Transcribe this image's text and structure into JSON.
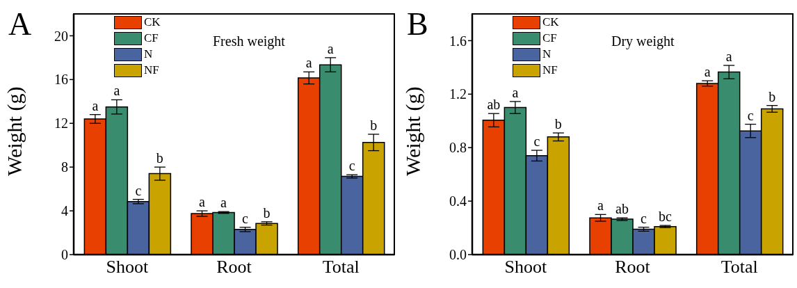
{
  "chart_data": [
    {
      "type": "bar",
      "title": "A",
      "annotations": [
        "Fresh weight"
      ],
      "ylabel": "Weight (g)",
      "categories": [
        "Shoot",
        "Root",
        "Total"
      ],
      "ylim": [
        0,
        22
      ],
      "yticks": [
        0,
        4,
        8,
        12,
        16,
        20
      ],
      "legend": "top left",
      "series": [
        {
          "name": "CK",
          "color": "#e84000",
          "values": [
            12.4,
            3.75,
            16.15
          ],
          "errors": [
            0.4,
            0.25,
            0.55
          ],
          "value_labels": [
            "a",
            "a",
            "a"
          ]
        },
        {
          "name": "CF",
          "color": "#3a8c6e",
          "values": [
            13.5,
            3.85,
            17.35
          ],
          "errors": [
            0.65,
            0.08,
            0.65
          ],
          "value_labels": [
            "a",
            "a",
            "a"
          ]
        },
        {
          "name": "N",
          "color": "#4a64a0",
          "values": [
            4.85,
            2.3,
            7.15
          ],
          "errors": [
            0.2,
            0.2,
            0.15
          ],
          "value_labels": [
            "c",
            "c",
            "c"
          ]
        },
        {
          "name": "NF",
          "color": "#c9a400",
          "values": [
            7.4,
            2.85,
            10.25
          ],
          "errors": [
            0.6,
            0.15,
            0.75
          ],
          "value_labels": [
            "b",
            "b",
            "b"
          ]
        }
      ]
    },
    {
      "type": "bar",
      "title": "B",
      "annotations": [
        "Dry weight"
      ],
      "ylabel": "Weight (g)",
      "categories": [
        "Shoot",
        "Root",
        "Total"
      ],
      "ylim": [
        0,
        1.8
      ],
      "yticks": [
        {
          "value": 0,
          "label": "0.0"
        },
        0.4,
        0.8,
        1.2,
        1.6
      ],
      "legend": "top left",
      "series": [
        {
          "name": "CK",
          "color": "#e84000",
          "values": [
            1.005,
            0.275,
            1.28
          ],
          "errors": [
            0.05,
            0.025,
            0.02
          ],
          "value_labels": [
            "ab",
            "a",
            "a"
          ]
        },
        {
          "name": "CF",
          "color": "#3a8c6e",
          "values": [
            1.1,
            0.265,
            1.365
          ],
          "errors": [
            0.045,
            0.01,
            0.05
          ],
          "value_labels": [
            "a",
            "ab",
            "a"
          ]
        },
        {
          "name": "N",
          "color": "#4a64a0",
          "values": [
            0.74,
            0.19,
            0.925
          ],
          "errors": [
            0.04,
            0.015,
            0.05
          ],
          "value_labels": [
            "c",
            "c",
            "c"
          ]
        },
        {
          "name": "NF",
          "color": "#c9a400",
          "values": [
            0.88,
            0.21,
            1.09
          ],
          "errors": [
            0.03,
            0.008,
            0.025
          ],
          "value_labels": [
            "b",
            "bc",
            "b"
          ]
        }
      ]
    }
  ]
}
